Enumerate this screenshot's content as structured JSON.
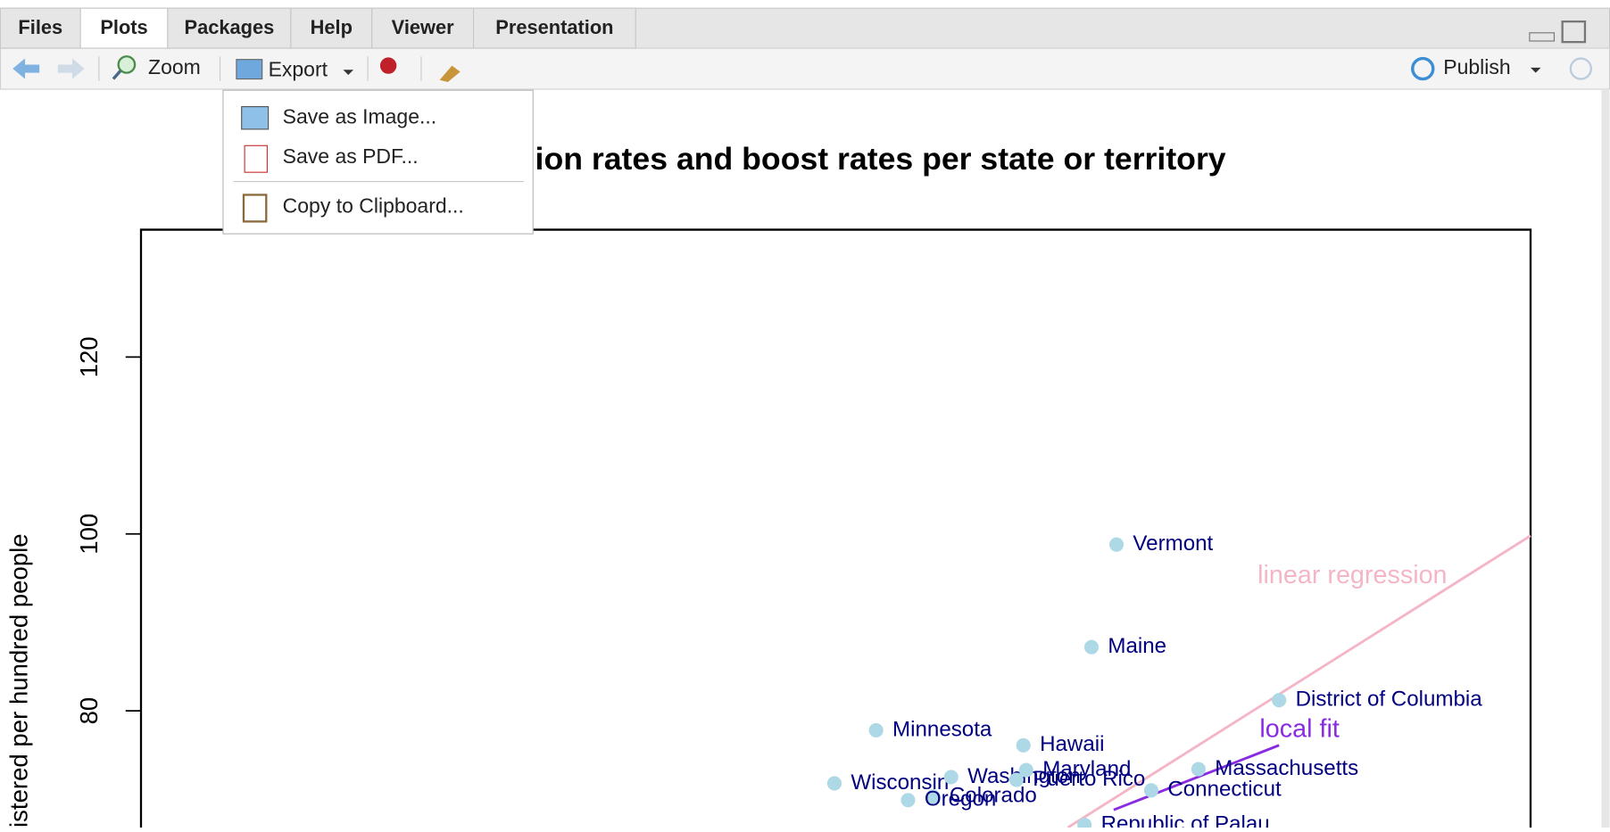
{
  "tabs": [
    "Files",
    "Plots",
    "Packages",
    "Help",
    "Viewer",
    "Presentation"
  ],
  "active_tab": 1,
  "toolbar": {
    "zoom": "Zoom",
    "export": "Export",
    "publish": "Publish"
  },
  "export_menu": [
    "Save as Image...",
    "Save as PDF...",
    "Copy to Clipboard..."
  ],
  "plot": {
    "type": "scatter",
    "title": "ion rates and boost rates per state or territory",
    "y_label": "istered per hundred people",
    "xlim": [
      0,
      100
    ],
    "ylim": [
      66.8,
      134.4
    ],
    "yticks": [
      80,
      100,
      120
    ],
    "point_color": "#add8e6",
    "label_color": "#000080",
    "labels": [
      "Vermont",
      "Maine",
      "District of Columbia",
      "Minnesota",
      "Hawaii",
      "Massachusetts",
      "Wisconsin",
      "Washington",
      "Maryland",
      "Puerto Rico",
      "Colorado",
      "Oregon",
      "Connecticut",
      "Republic of Palau"
    ],
    "x": [
      70.2,
      68.4,
      81.9,
      52.9,
      63.5,
      76.1,
      49.9,
      58.3,
      63.7,
      63.0,
      57.0,
      55.2,
      72.7,
      67.9
    ],
    "y": [
      98.8,
      87.2,
      81.2,
      77.8,
      76.1,
      73.4,
      71.8,
      72.5,
      73.3,
      72.2,
      70.3,
      69.9,
      71.0,
      67.1
    ],
    "lines": [
      {
        "name": "linear regression",
        "color": "#f4b6c6",
        "x": [
          66.7,
          100
        ],
        "y": [
          66.8,
          99.8
        ]
      },
      {
        "name": "local fit",
        "color": "#8a2be2",
        "x": [
          70.0,
          81.9
        ],
        "y": [
          68.8,
          76.1
        ]
      }
    ]
  }
}
